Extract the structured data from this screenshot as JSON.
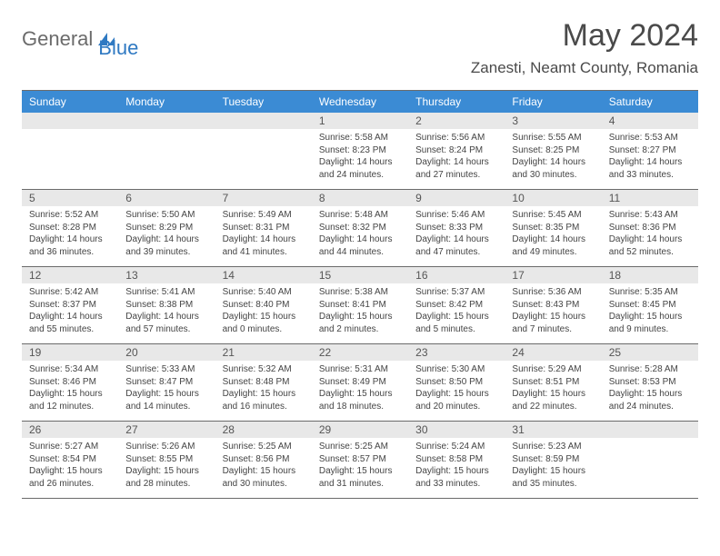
{
  "brand": {
    "part1": "General",
    "part2": "Blue"
  },
  "title": "May 2024",
  "location": "Zanesti, Neamt County, Romania",
  "colors": {
    "header_bg": "#3b8bd4",
    "header_text": "#ffffff",
    "band_bg": "#e8e8e8",
    "rule": "#6b6b6b",
    "logo_gray": "#6b6b6b",
    "logo_blue": "#2f79c2"
  },
  "day_names": [
    "Sunday",
    "Monday",
    "Tuesday",
    "Wednesday",
    "Thursday",
    "Friday",
    "Saturday"
  ],
  "weeks": [
    [
      {
        "n": "",
        "sr": "",
        "ss": "",
        "dl": ""
      },
      {
        "n": "",
        "sr": "",
        "ss": "",
        "dl": ""
      },
      {
        "n": "",
        "sr": "",
        "ss": "",
        "dl": ""
      },
      {
        "n": "1",
        "sr": "Sunrise: 5:58 AM",
        "ss": "Sunset: 8:23 PM",
        "dl": "Daylight: 14 hours and 24 minutes."
      },
      {
        "n": "2",
        "sr": "Sunrise: 5:56 AM",
        "ss": "Sunset: 8:24 PM",
        "dl": "Daylight: 14 hours and 27 minutes."
      },
      {
        "n": "3",
        "sr": "Sunrise: 5:55 AM",
        "ss": "Sunset: 8:25 PM",
        "dl": "Daylight: 14 hours and 30 minutes."
      },
      {
        "n": "4",
        "sr": "Sunrise: 5:53 AM",
        "ss": "Sunset: 8:27 PM",
        "dl": "Daylight: 14 hours and 33 minutes."
      }
    ],
    [
      {
        "n": "5",
        "sr": "Sunrise: 5:52 AM",
        "ss": "Sunset: 8:28 PM",
        "dl": "Daylight: 14 hours and 36 minutes."
      },
      {
        "n": "6",
        "sr": "Sunrise: 5:50 AM",
        "ss": "Sunset: 8:29 PM",
        "dl": "Daylight: 14 hours and 39 minutes."
      },
      {
        "n": "7",
        "sr": "Sunrise: 5:49 AM",
        "ss": "Sunset: 8:31 PM",
        "dl": "Daylight: 14 hours and 41 minutes."
      },
      {
        "n": "8",
        "sr": "Sunrise: 5:48 AM",
        "ss": "Sunset: 8:32 PM",
        "dl": "Daylight: 14 hours and 44 minutes."
      },
      {
        "n": "9",
        "sr": "Sunrise: 5:46 AM",
        "ss": "Sunset: 8:33 PM",
        "dl": "Daylight: 14 hours and 47 minutes."
      },
      {
        "n": "10",
        "sr": "Sunrise: 5:45 AM",
        "ss": "Sunset: 8:35 PM",
        "dl": "Daylight: 14 hours and 49 minutes."
      },
      {
        "n": "11",
        "sr": "Sunrise: 5:43 AM",
        "ss": "Sunset: 8:36 PM",
        "dl": "Daylight: 14 hours and 52 minutes."
      }
    ],
    [
      {
        "n": "12",
        "sr": "Sunrise: 5:42 AM",
        "ss": "Sunset: 8:37 PM",
        "dl": "Daylight: 14 hours and 55 minutes."
      },
      {
        "n": "13",
        "sr": "Sunrise: 5:41 AM",
        "ss": "Sunset: 8:38 PM",
        "dl": "Daylight: 14 hours and 57 minutes."
      },
      {
        "n": "14",
        "sr": "Sunrise: 5:40 AM",
        "ss": "Sunset: 8:40 PM",
        "dl": "Daylight: 15 hours and 0 minutes."
      },
      {
        "n": "15",
        "sr": "Sunrise: 5:38 AM",
        "ss": "Sunset: 8:41 PM",
        "dl": "Daylight: 15 hours and 2 minutes."
      },
      {
        "n": "16",
        "sr": "Sunrise: 5:37 AM",
        "ss": "Sunset: 8:42 PM",
        "dl": "Daylight: 15 hours and 5 minutes."
      },
      {
        "n": "17",
        "sr": "Sunrise: 5:36 AM",
        "ss": "Sunset: 8:43 PM",
        "dl": "Daylight: 15 hours and 7 minutes."
      },
      {
        "n": "18",
        "sr": "Sunrise: 5:35 AM",
        "ss": "Sunset: 8:45 PM",
        "dl": "Daylight: 15 hours and 9 minutes."
      }
    ],
    [
      {
        "n": "19",
        "sr": "Sunrise: 5:34 AM",
        "ss": "Sunset: 8:46 PM",
        "dl": "Daylight: 15 hours and 12 minutes."
      },
      {
        "n": "20",
        "sr": "Sunrise: 5:33 AM",
        "ss": "Sunset: 8:47 PM",
        "dl": "Daylight: 15 hours and 14 minutes."
      },
      {
        "n": "21",
        "sr": "Sunrise: 5:32 AM",
        "ss": "Sunset: 8:48 PM",
        "dl": "Daylight: 15 hours and 16 minutes."
      },
      {
        "n": "22",
        "sr": "Sunrise: 5:31 AM",
        "ss": "Sunset: 8:49 PM",
        "dl": "Daylight: 15 hours and 18 minutes."
      },
      {
        "n": "23",
        "sr": "Sunrise: 5:30 AM",
        "ss": "Sunset: 8:50 PM",
        "dl": "Daylight: 15 hours and 20 minutes."
      },
      {
        "n": "24",
        "sr": "Sunrise: 5:29 AM",
        "ss": "Sunset: 8:51 PM",
        "dl": "Daylight: 15 hours and 22 minutes."
      },
      {
        "n": "25",
        "sr": "Sunrise: 5:28 AM",
        "ss": "Sunset: 8:53 PM",
        "dl": "Daylight: 15 hours and 24 minutes."
      }
    ],
    [
      {
        "n": "26",
        "sr": "Sunrise: 5:27 AM",
        "ss": "Sunset: 8:54 PM",
        "dl": "Daylight: 15 hours and 26 minutes."
      },
      {
        "n": "27",
        "sr": "Sunrise: 5:26 AM",
        "ss": "Sunset: 8:55 PM",
        "dl": "Daylight: 15 hours and 28 minutes."
      },
      {
        "n": "28",
        "sr": "Sunrise: 5:25 AM",
        "ss": "Sunset: 8:56 PM",
        "dl": "Daylight: 15 hours and 30 minutes."
      },
      {
        "n": "29",
        "sr": "Sunrise: 5:25 AM",
        "ss": "Sunset: 8:57 PM",
        "dl": "Daylight: 15 hours and 31 minutes."
      },
      {
        "n": "30",
        "sr": "Sunrise: 5:24 AM",
        "ss": "Sunset: 8:58 PM",
        "dl": "Daylight: 15 hours and 33 minutes."
      },
      {
        "n": "31",
        "sr": "Sunrise: 5:23 AM",
        "ss": "Sunset: 8:59 PM",
        "dl": "Daylight: 15 hours and 35 minutes."
      },
      {
        "n": "",
        "sr": "",
        "ss": "",
        "dl": ""
      }
    ]
  ]
}
